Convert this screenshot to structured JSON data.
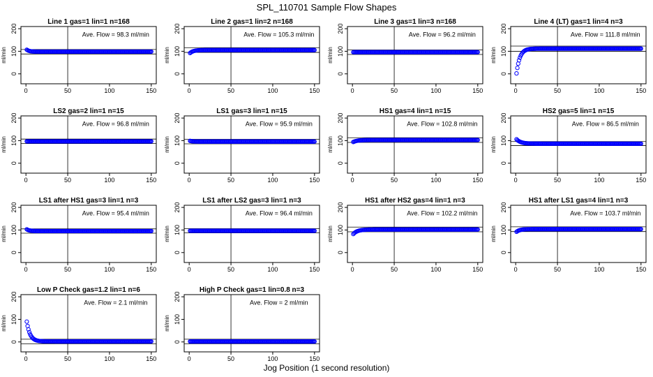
{
  "title": "SPL_110701  Sample Flow Shapes",
  "xlabel": "Jog Position (1 second resolution)",
  "chart_data": [
    {
      "type": "scatter",
      "title": "Line 1 gas=1 lin=1 n=168",
      "ylabel": "ml/min",
      "annotation": "Ave. Flow = 98.3  ml/min",
      "ave": 98.3,
      "start": 107,
      "tau": 3,
      "band": [
        88,
        108
      ],
      "vline": 50,
      "xlim": [
        0,
        150
      ],
      "ylim": [
        0,
        200
      ],
      "xticks": [
        0,
        50,
        100,
        150
      ],
      "yticks": [
        0,
        100,
        200
      ],
      "color": "#0000ff"
    },
    {
      "type": "scatter",
      "title": "Line 2 gas=1 lin=2 n=168",
      "ylabel": "ml/min",
      "annotation": "Ave. Flow = 105.3  ml/min",
      "ave": 105.3,
      "start": 92,
      "tau": 4,
      "band": [
        95,
        116
      ],
      "vline": 50,
      "xlim": [
        0,
        150
      ],
      "ylim": [
        0,
        200
      ],
      "xticks": [
        0,
        50,
        100,
        150
      ],
      "yticks": [
        0,
        100,
        200
      ],
      "color": "#0000ff"
    },
    {
      "type": "scatter",
      "title": "Line 3 gas=1 lin=3 n=168",
      "ylabel": "ml/min",
      "annotation": "Ave. Flow = 96.2  ml/min",
      "ave": 96.2,
      "start": 96.2,
      "tau": 1,
      "band": [
        86,
        106
      ],
      "vline": 50,
      "xlim": [
        0,
        150
      ],
      "ylim": [
        0,
        200
      ],
      "xticks": [
        0,
        50,
        100,
        150
      ],
      "yticks": [
        0,
        100,
        200
      ],
      "color": "#0000ff"
    },
    {
      "type": "scatter",
      "title": "Line 4 (LT) gas=1 lin=4 n=3",
      "ylabel": "ml/min",
      "annotation": "Ave. Flow = 111.8  ml/min",
      "ave": 111.8,
      "start": 2,
      "tau": 4,
      "band": [
        100,
        123
      ],
      "vline": 50,
      "xlim": [
        0,
        150
      ],
      "ylim": [
        0,
        200
      ],
      "xticks": [
        0,
        50,
        100,
        150
      ],
      "yticks": [
        0,
        100,
        200
      ],
      "color": "#0000ff"
    },
    {
      "type": "scatter",
      "title": "LS2 gas=2 lin=1 n=15",
      "ylabel": "ml/min",
      "annotation": "Ave. Flow = 96.8  ml/min",
      "ave": 96.8,
      "start": 96.8,
      "tau": 1,
      "band": [
        87,
        107
      ],
      "vline": 50,
      "xlim": [
        0,
        150
      ],
      "ylim": [
        0,
        200
      ],
      "xticks": [
        0,
        50,
        100,
        150
      ],
      "yticks": [
        0,
        100,
        200
      ],
      "color": "#0000ff"
    },
    {
      "type": "scatter",
      "title": "LS1 gas=3 lin=1 n=15",
      "ylabel": "ml/min",
      "annotation": "Ave. Flow = 95.9  ml/min",
      "ave": 95.9,
      "start": 99,
      "tau": 3,
      "band": [
        86,
        106
      ],
      "vline": 50,
      "xlim": [
        0,
        150
      ],
      "ylim": [
        0,
        200
      ],
      "xticks": [
        0,
        50,
        100,
        150
      ],
      "yticks": [
        0,
        100,
        200
      ],
      "color": "#0000ff"
    },
    {
      "type": "scatter",
      "title": "HS1 gas=4 lin=1 n=15",
      "ylabel": "ml/min",
      "annotation": "Ave. Flow = 102.8  ml/min",
      "ave": 102.8,
      "start": 94,
      "tau": 5,
      "band": [
        92,
        113
      ],
      "vline": 50,
      "xlim": [
        0,
        150
      ],
      "ylim": [
        0,
        200
      ],
      "xticks": [
        0,
        50,
        100,
        150
      ],
      "yticks": [
        0,
        100,
        200
      ],
      "color": "#0000ff"
    },
    {
      "type": "scatter",
      "title": "HS2 gas=5 lin=1 n=15",
      "ylabel": "ml/min",
      "annotation": "Ave. Flow = 86.5  ml/min",
      "ave": 86.5,
      "start": 106,
      "tau": 5,
      "band": [
        78,
        96
      ],
      "vline": 50,
      "xlim": [
        0,
        150
      ],
      "ylim": [
        0,
        200
      ],
      "xticks": [
        0,
        50,
        100,
        150
      ],
      "yticks": [
        0,
        100,
        200
      ],
      "color": "#0000ff"
    },
    {
      "type": "scatter",
      "title": "LS1 after HS1 gas=3 lin=1 n=3",
      "ylabel": "ml/min",
      "annotation": "Ave. Flow = 95.4  ml/min",
      "ave": 95.4,
      "start": 103,
      "tau": 3,
      "band": [
        86,
        105
      ],
      "vline": 50,
      "xlim": [
        0,
        150
      ],
      "ylim": [
        0,
        200
      ],
      "xticks": [
        0,
        50,
        100,
        150
      ],
      "yticks": [
        0,
        100,
        200
      ],
      "color": "#0000ff"
    },
    {
      "type": "scatter",
      "title": "LS1 after LS2 gas=3 lin=1 n=3",
      "ylabel": "ml/min",
      "annotation": "Ave. Flow = 96.4  ml/min",
      "ave": 96.4,
      "start": 96.4,
      "tau": 1,
      "band": [
        87,
        106
      ],
      "vline": 50,
      "xlim": [
        0,
        150
      ],
      "ylim": [
        0,
        200
      ],
      "xticks": [
        0,
        50,
        100,
        150
      ],
      "yticks": [
        0,
        100,
        200
      ],
      "color": "#0000ff"
    },
    {
      "type": "scatter",
      "title": "HS1 after HS2 gas=4 lin=1 n=3",
      "ylabel": "ml/min",
      "annotation": "Ave. Flow = 102.2  ml/min",
      "ave": 102.2,
      "start": 82,
      "tau": 5,
      "band": [
        92,
        113
      ],
      "vline": 50,
      "xlim": [
        0,
        150
      ],
      "ylim": [
        0,
        200
      ],
      "xticks": [
        0,
        50,
        100,
        150
      ],
      "yticks": [
        0,
        100,
        200
      ],
      "color": "#0000ff"
    },
    {
      "type": "scatter",
      "title": "HS1 after LS1 gas=4 lin=1 n=3",
      "ylabel": "ml/min",
      "annotation": "Ave. Flow = 103.7  ml/min",
      "ave": 103.7,
      "start": 92,
      "tau": 4,
      "band": [
        93,
        114
      ],
      "vline": 50,
      "xlim": [
        0,
        150
      ],
      "ylim": [
        0,
        200
      ],
      "xticks": [
        0,
        50,
        100,
        150
      ],
      "yticks": [
        0,
        100,
        200
      ],
      "color": "#0000ff"
    },
    {
      "type": "scatter",
      "title": "Low P Check gas=1.2 lin=1 n=6",
      "ylabel": "ml/min",
      "annotation": "Ave. Flow = 2.1  ml/min",
      "ave": 2.1,
      "start": 90,
      "tau": 4,
      "band": [
        -8,
        12
      ],
      "vline": 50,
      "xlim": [
        0,
        150
      ],
      "ylim": [
        0,
        200
      ],
      "xticks": [
        0,
        50,
        100,
        150
      ],
      "yticks": [
        0,
        100,
        200
      ],
      "color": "#0000ff"
    },
    {
      "type": "scatter",
      "title": "High P Check gas=1 lin=0.8 n=3",
      "ylabel": "ml/min",
      "annotation": "Ave. Flow = 2  ml/min",
      "ave": 2,
      "start": 2,
      "tau": 1,
      "band": [
        -8,
        12
      ],
      "vline": 50,
      "xlim": [
        0,
        150
      ],
      "ylim": [
        0,
        200
      ],
      "xticks": [
        0,
        50,
        100,
        150
      ],
      "yticks": [
        0,
        100,
        200
      ],
      "color": "#0000ff"
    }
  ]
}
